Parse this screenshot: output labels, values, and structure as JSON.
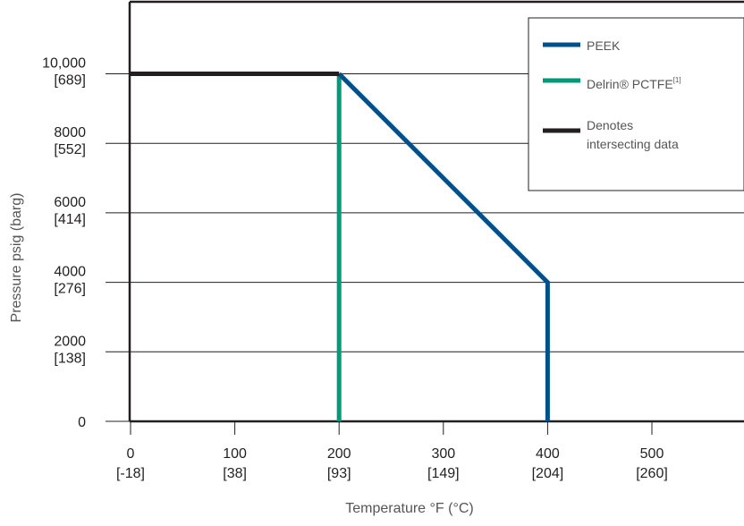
{
  "chart_data": {
    "type": "line",
    "xlabel": "Temperature °F (°C)",
    "ylabel": "Pressure psig (barg)",
    "xlim": [
      0,
      585
    ],
    "ylim": [
      0,
      11000
    ],
    "grid": "horizontal",
    "legend_position": "top-right",
    "x_ticks": [
      {
        "value": 0,
        "line1": "0",
        "line2": "[-18]"
      },
      {
        "value": 100,
        "line1": "100",
        "line2": "[38]"
      },
      {
        "value": 200,
        "line1": "200",
        "line2": "[93]"
      },
      {
        "value": 300,
        "line1": "300",
        "line2": "[149]"
      },
      {
        "value": 400,
        "line1": "400",
        "line2": "[204]"
      },
      {
        "value": 500,
        "line1": "500",
        "line2": "[260]"
      }
    ],
    "y_ticks": [
      {
        "value": 0,
        "line1": "0",
        "line2": ""
      },
      {
        "value": 2000,
        "line1": "2000",
        "line2": "[138]"
      },
      {
        "value": 4000,
        "line1": "4000",
        "line2": "[276]"
      },
      {
        "value": 6000,
        "line1": "6000",
        "line2": "[414]"
      },
      {
        "value": 8000,
        "line1": "8000",
        "line2": "[552]"
      },
      {
        "value": 10000,
        "line1": "10,000",
        "line2": "[689]"
      }
    ],
    "series": [
      {
        "name": "PEEK",
        "color": "#00508c",
        "x": [
          200,
          400,
          400
        ],
        "y": [
          10000,
          4000,
          0
        ]
      },
      {
        "name": "Delrin® PCTFE[1]",
        "color": "#00997a",
        "x": [
          200,
          200
        ],
        "y": [
          10000,
          0
        ]
      },
      {
        "name": "Denotes intersecting data",
        "color": "#231f20",
        "x": [
          0,
          200
        ],
        "y": [
          10000,
          10000
        ]
      }
    ],
    "legend": [
      {
        "name": "PEEK",
        "color": "#00508c",
        "lines": [
          "PEEK"
        ],
        "sup": ""
      },
      {
        "name": "Delrin® PCTFE[1]",
        "color": "#00997a",
        "lines": [
          "Delrin® PCTFE"
        ],
        "sup": "[1]"
      },
      {
        "name": "Denotes intersecting data",
        "color": "#231f20",
        "lines": [
          "Denotes",
          "intersecting data"
        ],
        "sup": ""
      }
    ],
    "colors": {
      "grid": "#231f20",
      "frame": "#231f20"
    }
  }
}
